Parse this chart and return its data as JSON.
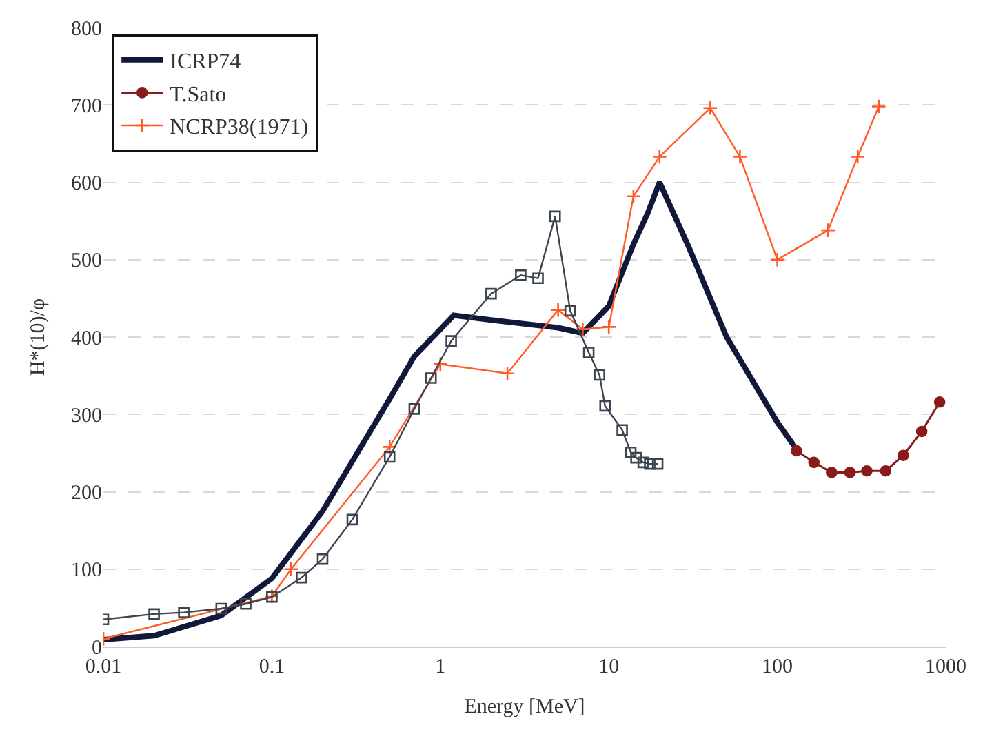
{
  "chart_data": {
    "type": "line",
    "xlabel": "Energy [MeV]",
    "ylabel": "H*(10)/φ",
    "log": "x",
    "xlim": [
      0.01,
      1000
    ],
    "xticks": [
      0.01,
      0.1,
      1,
      10,
      100,
      1000
    ],
    "ylim": [
      0,
      800
    ],
    "yticks": [
      0,
      100,
      200,
      300,
      400,
      500,
      600,
      700,
      800
    ],
    "grid": "y",
    "legend": "top left",
    "series": [
      {
        "name": "ICRP74",
        "color": "#12183a",
        "marker": "none",
        "x": [
          0.01,
          0.02,
          0.05,
          0.1,
          0.2,
          0.5,
          0.7,
          1,
          1.2,
          2,
          5,
          7,
          10,
          14,
          17,
          20,
          30,
          50,
          100,
          130
        ],
        "values": [
          9,
          14,
          40,
          88,
          175,
          320,
          375,
          410,
          428,
          422,
          412,
          405,
          440,
          520,
          560,
          600,
          515,
          400,
          290,
          255
        ]
      },
      {
        "name": "T.Sato",
        "color": "#8b1a1a",
        "marker": "circle",
        "x": [
          130,
          165,
          210,
          270,
          340,
          440,
          560,
          720,
          920
        ],
        "values": [
          253,
          238,
          225,
          225,
          227,
          227,
          247,
          278,
          316
        ]
      },
      {
        "name": "NCRP38(1971)",
        "color": "#ff5a28",
        "marker": "cross",
        "x": [
          0.01,
          0.1,
          0.13,
          0.5,
          1,
          2.5,
          5,
          7,
          10,
          14,
          20,
          40,
          60,
          100,
          200,
          300,
          400
        ],
        "values": [
          10,
          65,
          100,
          258,
          365,
          353,
          435,
          410,
          413,
          582,
          633,
          696,
          633,
          500,
          538,
          633,
          698
        ]
      },
      {
        "color": "#3c4450",
        "marker": "square",
        "x": [
          0.01,
          0.02,
          0.03,
          0.05,
          0.07,
          0.1,
          0.15,
          0.2,
          0.3,
          0.5,
          0.7,
          0.88,
          1.16,
          2,
          3,
          3.8,
          4.8,
          5.9,
          7.6,
          8.8,
          9.5,
          12,
          13.5,
          14.5,
          16,
          17.5,
          19.5
        ],
        "values": [
          35,
          42,
          44,
          49,
          55,
          64,
          89,
          113,
          164,
          245,
          307,
          347,
          395,
          456,
          480,
          476,
          556,
          434,
          380,
          351,
          311,
          280,
          251,
          244,
          238,
          236,
          236
        ]
      }
    ]
  }
}
